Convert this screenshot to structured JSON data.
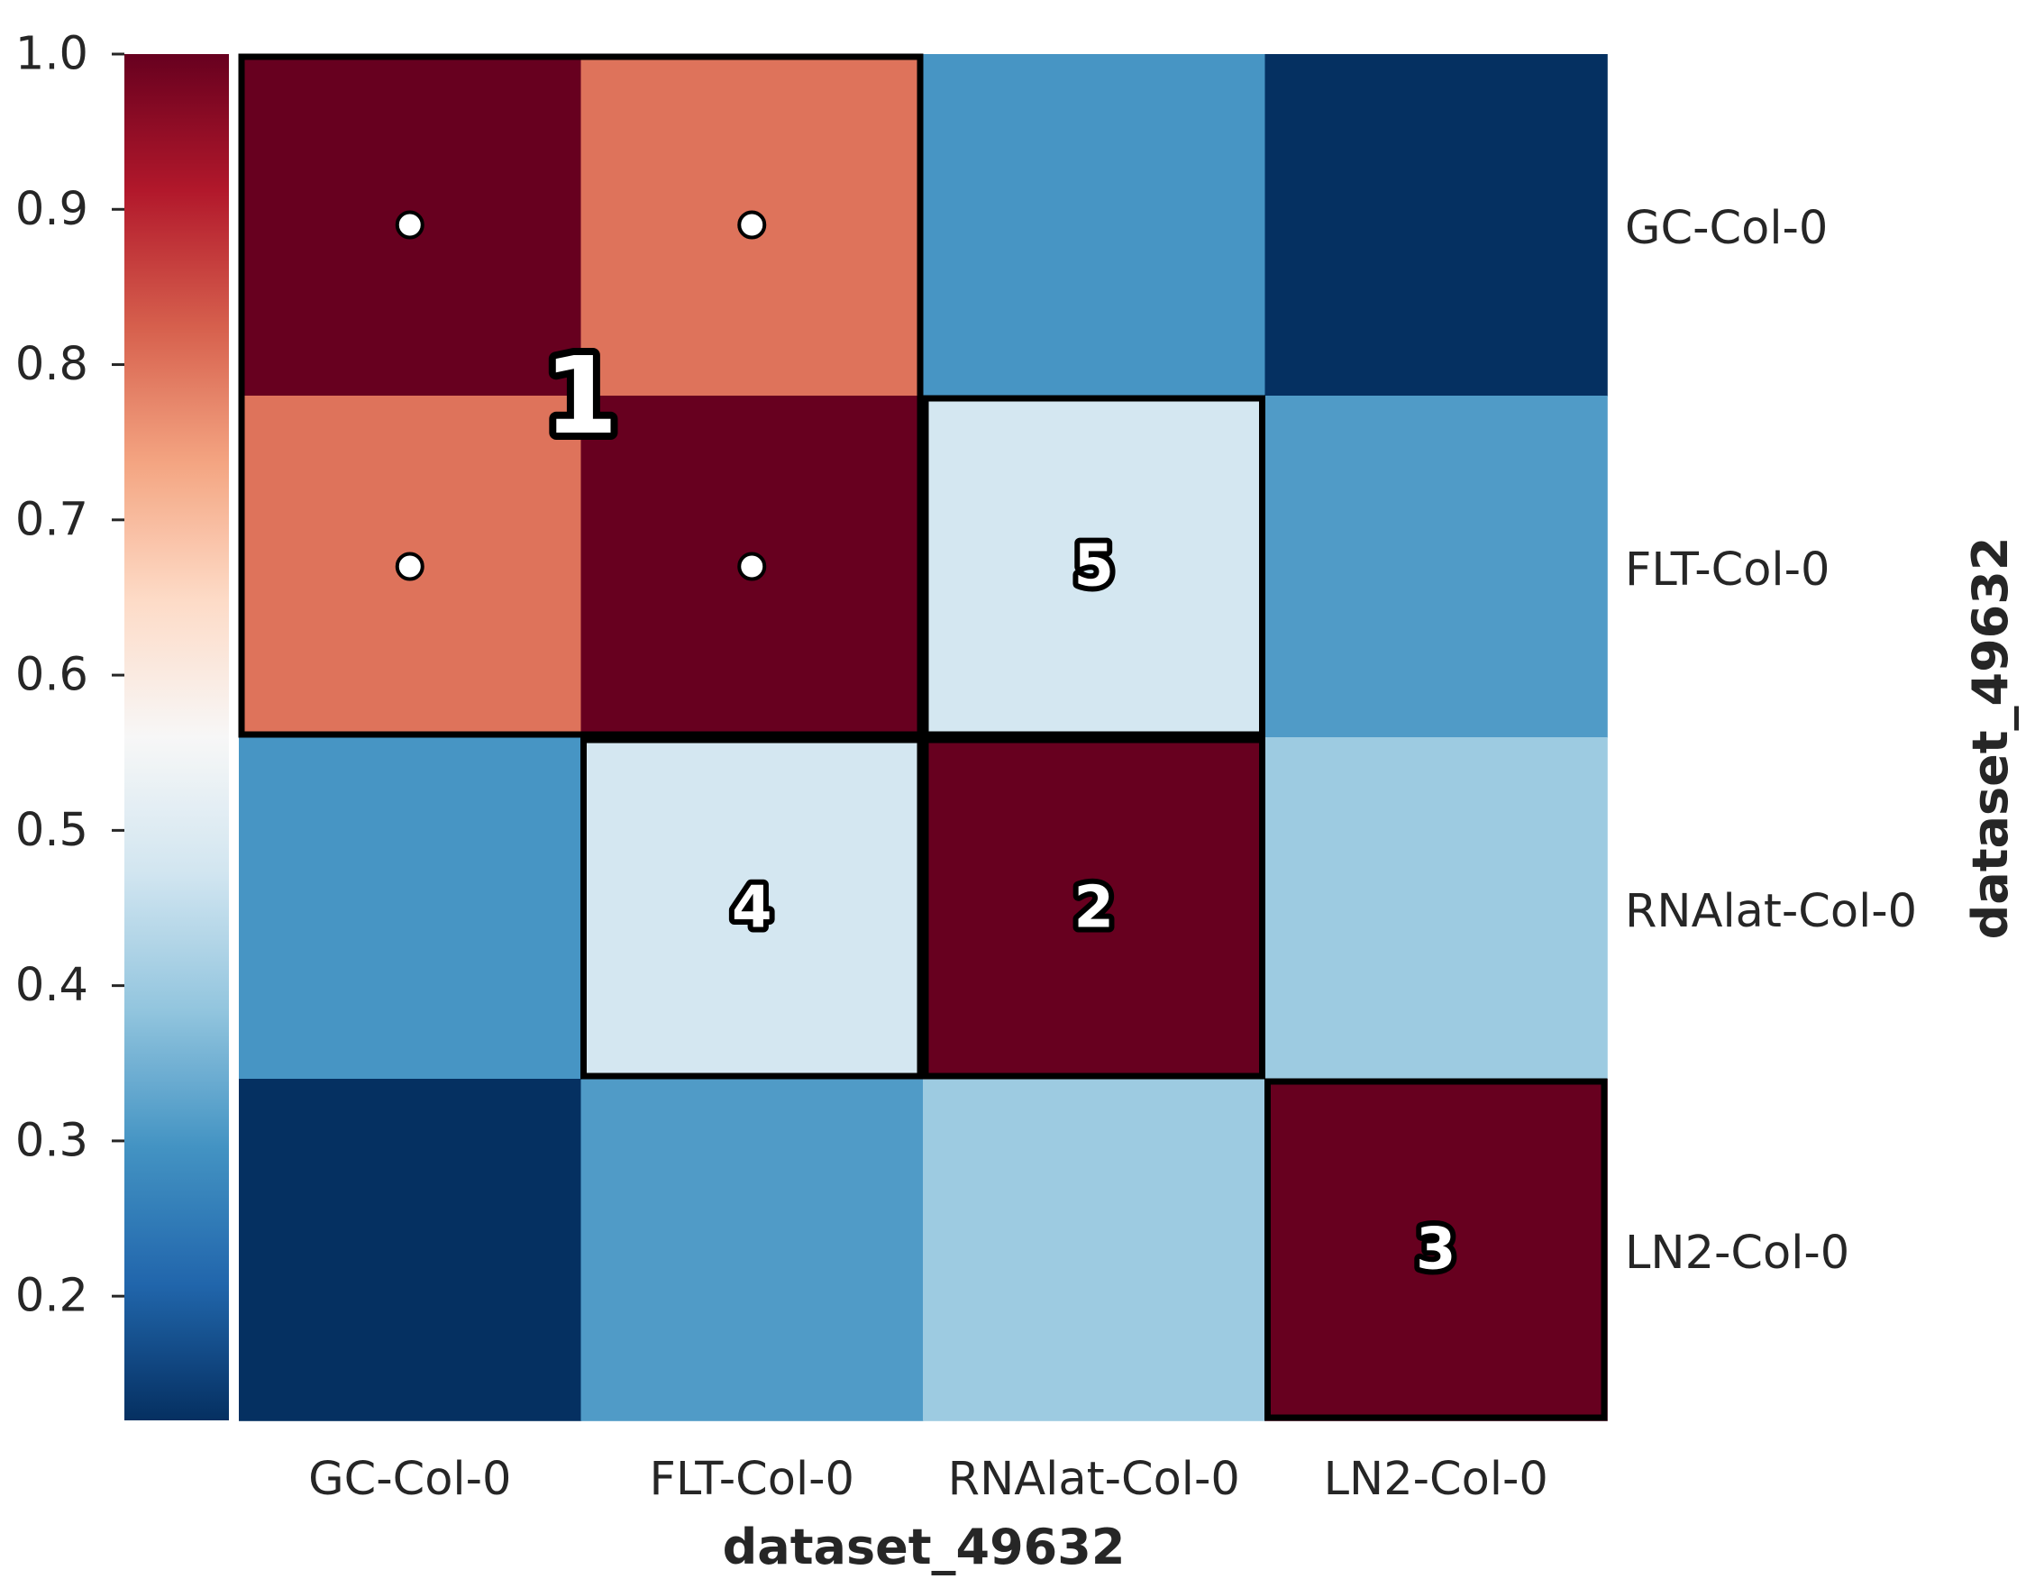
{
  "chart_data": {
    "type": "heatmap",
    "title": "",
    "xlabel": "dataset_49632",
    "ylabel": "dataset_49632",
    "rows": [
      "GC-Col-0",
      "FLT-Col-0",
      "RNAlat-Col-0",
      "LN2-Col-0"
    ],
    "columns": [
      "GC-Col-0",
      "FLT-Col-0",
      "RNAlat-Col-0",
      "LN2-Col-0"
    ],
    "values": [
      [
        1.0,
        0.8,
        0.3,
        0.12
      ],
      [
        0.8,
        1.0,
        0.48,
        0.31
      ],
      [
        0.3,
        0.48,
        1.0,
        0.4
      ],
      [
        0.12,
        0.31,
        0.4,
        1.0
      ]
    ],
    "colormap": "RdBu_r",
    "colormap_stops": [
      "#053061",
      "#2166ac",
      "#4393c3",
      "#92c5de",
      "#d1e5f0",
      "#f7f7f7",
      "#fddbc7",
      "#f4a582",
      "#d6604d",
      "#b2182b",
      "#67001f"
    ],
    "colorbar": {
      "range": [
        0.12,
        1.0
      ],
      "ticks": [
        0.2,
        0.3,
        0.4,
        0.5,
        0.6,
        0.7,
        0.8,
        0.9,
        1.0
      ],
      "tick_labels": [
        "0.2",
        "0.3",
        "0.4",
        "0.5",
        "0.6",
        "0.7",
        "0.8",
        "0.9",
        "1.0"
      ],
      "position": "left"
    },
    "row_labels_position": "right",
    "clusters": [
      {
        "label": "1",
        "rows": [
          0,
          1
        ],
        "cols": [
          0,
          1
        ]
      },
      {
        "label": "2",
        "rows": [
          2,
          2
        ],
        "cols": [
          2,
          2
        ]
      },
      {
        "label": "3",
        "rows": [
          3,
          3
        ],
        "cols": [
          3,
          3
        ]
      },
      {
        "label": "4",
        "rows": [
          2,
          2
        ],
        "cols": [
          1,
          1
        ]
      },
      {
        "label": "5",
        "rows": [
          1,
          1
        ],
        "cols": [
          2,
          2
        ]
      }
    ],
    "markers": [
      {
        "row": 0,
        "col": 0
      },
      {
        "row": 0,
        "col": 1
      },
      {
        "row": 1,
        "col": 0
      },
      {
        "row": 1,
        "col": 1
      }
    ],
    "grid": false
  }
}
